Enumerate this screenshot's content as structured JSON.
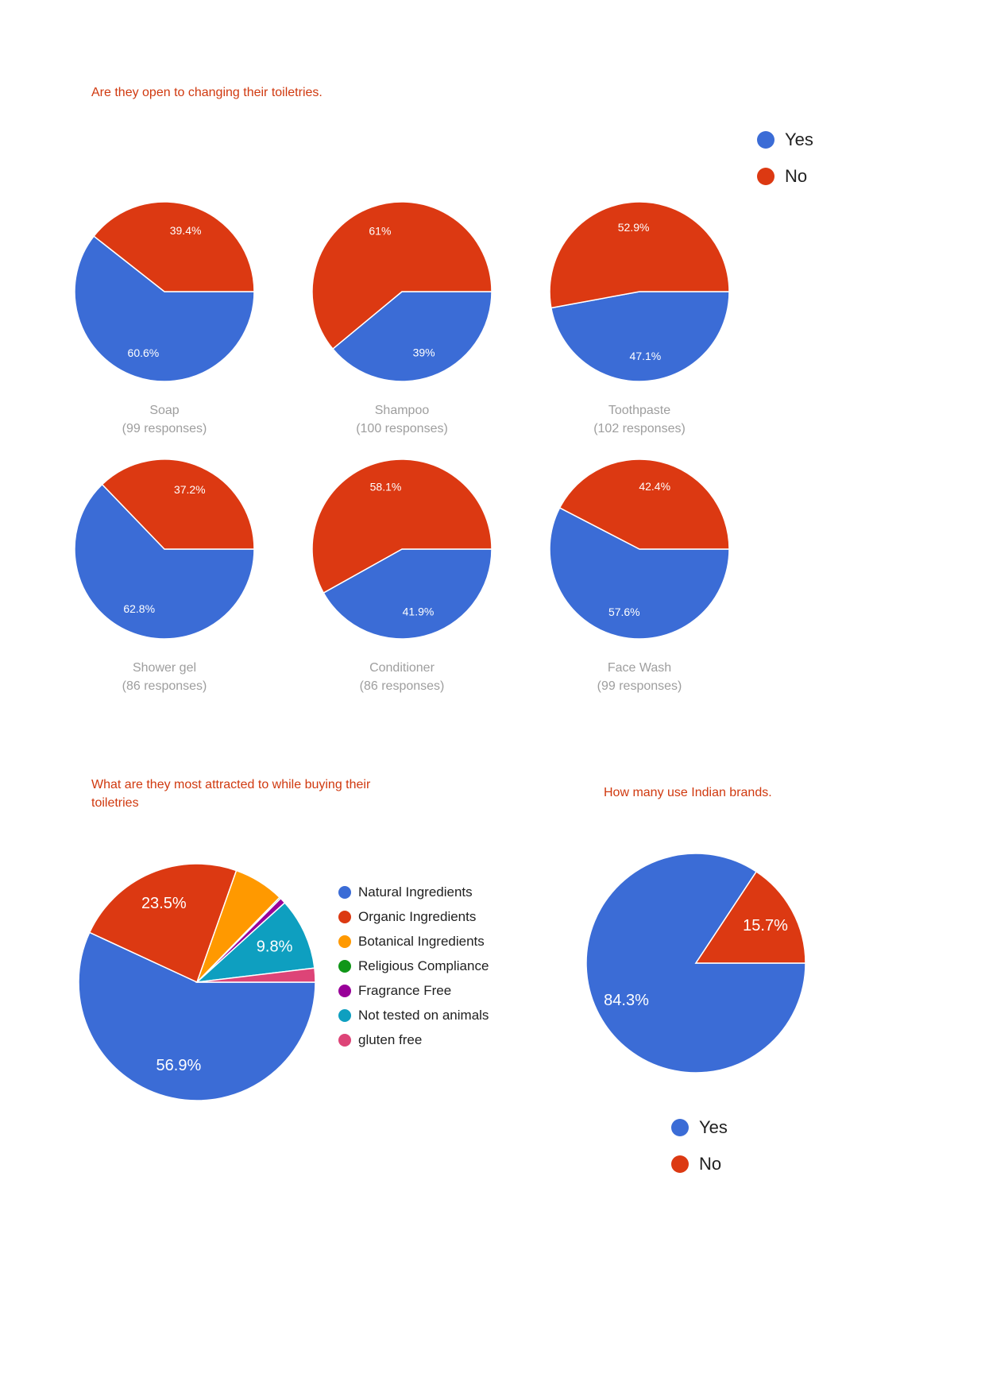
{
  "palette": {
    "blue": "#3b6cd6",
    "red": "#dc3912",
    "orange": "#ff9900",
    "green": "#109618",
    "purple": "#990099",
    "teal": "#0e9fc0",
    "pink": "#dd4477",
    "question_title": "#d0390f",
    "caption_text": "#9e9e9e",
    "legend_text": "#212121",
    "slice_label_text": "#ffffff",
    "background": "#ffffff"
  },
  "question1": {
    "title": "Are they open to changing their toiletries.",
    "legend": [
      {
        "label": "Yes",
        "color": "#3b6cd6"
      },
      {
        "label": "No",
        "color": "#dc3912"
      }
    ]
  },
  "question2": {
    "title": "What are they most attracted to while buying their toiletries"
  },
  "question3": {
    "title": "How many use Indian brands.",
    "legend": [
      {
        "label": "Yes",
        "color": "#3b6cd6"
      },
      {
        "label": "No",
        "color": "#dc3912"
      }
    ]
  },
  "chart_data": [
    {
      "id": "soap",
      "type": "pie",
      "title": "Soap",
      "responses": 99,
      "responses_label": "(99 responses)",
      "start_angle": "3-oclock",
      "direction": "clockwise",
      "slices": [
        {
          "label": "Yes",
          "value": 60.6,
          "display": "60.6%",
          "color": "#3b6cd6"
        },
        {
          "label": "No",
          "value": 39.4,
          "display": "39.4%",
          "color": "#dc3912"
        }
      ]
    },
    {
      "id": "shampoo",
      "type": "pie",
      "title": "Shampoo",
      "responses": 100,
      "responses_label": "(100 responses)",
      "start_angle": "3-oclock",
      "direction": "clockwise",
      "slices": [
        {
          "label": "Yes",
          "value": 39,
          "display": "39%",
          "color": "#3b6cd6"
        },
        {
          "label": "No",
          "value": 61,
          "display": "61%",
          "color": "#dc3912"
        }
      ]
    },
    {
      "id": "toothpaste",
      "type": "pie",
      "title": "Toothpaste",
      "responses": 102,
      "responses_label": "(102 responses)",
      "start_angle": "3-oclock",
      "direction": "clockwise",
      "slices": [
        {
          "label": "Yes",
          "value": 47.1,
          "display": "47.1%",
          "color": "#3b6cd6"
        },
        {
          "label": "No",
          "value": 52.9,
          "display": "52.9%",
          "color": "#dc3912"
        }
      ]
    },
    {
      "id": "showergel",
      "type": "pie",
      "title": "Shower gel",
      "responses": 86,
      "responses_label": "(86 responses)",
      "start_angle": "3-oclock",
      "direction": "clockwise",
      "slices": [
        {
          "label": "Yes",
          "value": 62.8,
          "display": "62.8%",
          "color": "#3b6cd6"
        },
        {
          "label": "No",
          "value": 37.2,
          "display": "37.2%",
          "color": "#dc3912"
        }
      ]
    },
    {
      "id": "conditioner",
      "type": "pie",
      "title": "Conditioner",
      "responses": 86,
      "responses_label": "(86 responses)",
      "start_angle": "3-oclock",
      "direction": "clockwise",
      "slices": [
        {
          "label": "Yes",
          "value": 41.9,
          "display": "41.9%",
          "color": "#3b6cd6"
        },
        {
          "label": "No",
          "value": 58.1,
          "display": "58.1%",
          "color": "#dc3912"
        }
      ]
    },
    {
      "id": "facewash",
      "type": "pie",
      "title": "Face Wash",
      "responses": 99,
      "responses_label": "(99 responses)",
      "start_angle": "3-oclock",
      "direction": "clockwise",
      "slices": [
        {
          "label": "Yes",
          "value": 57.6,
          "display": "57.6%",
          "color": "#3b6cd6"
        },
        {
          "label": "No",
          "value": 42.4,
          "display": "42.4%",
          "color": "#dc3912"
        }
      ]
    },
    {
      "id": "attraction",
      "type": "pie",
      "title": "What are they most attracted to while buying their toiletries",
      "responses_label": "",
      "start_angle": "3-oclock",
      "direction": "clockwise",
      "legend_position": "right",
      "slices": [
        {
          "label": "Natural Ingredients",
          "value": 56.9,
          "display": "56.9%",
          "color": "#3b6cd6"
        },
        {
          "label": "Organic Ingredients",
          "value": 23.5,
          "display": "23.5%",
          "color": "#dc3912"
        },
        {
          "label": "Botanical Ingredients",
          "value": 6.9,
          "display": "",
          "color": "#ff9900"
        },
        {
          "label": "Religious Compliance",
          "value": 0.2,
          "display": "",
          "color": "#109618"
        },
        {
          "label": "Fragrance Free",
          "value": 0.8,
          "display": "",
          "color": "#990099"
        },
        {
          "label": "Not tested on animals",
          "value": 9.8,
          "display": "9.8%",
          "color": "#0e9fc0"
        },
        {
          "label": "gluten free",
          "value": 1.9,
          "display": "",
          "color": "#dd4477"
        }
      ]
    },
    {
      "id": "indian",
      "type": "pie",
      "title": "How many use Indian brands.",
      "responses_label": "",
      "start_angle": "3-oclock",
      "direction": "clockwise",
      "legend_position": "bottom",
      "slices": [
        {
          "label": "Yes",
          "value": 84.3,
          "display": "84.3%",
          "color": "#3b6cd6"
        },
        {
          "label": "No",
          "value": 15.7,
          "display": "15.7%",
          "color": "#dc3912"
        }
      ]
    }
  ]
}
